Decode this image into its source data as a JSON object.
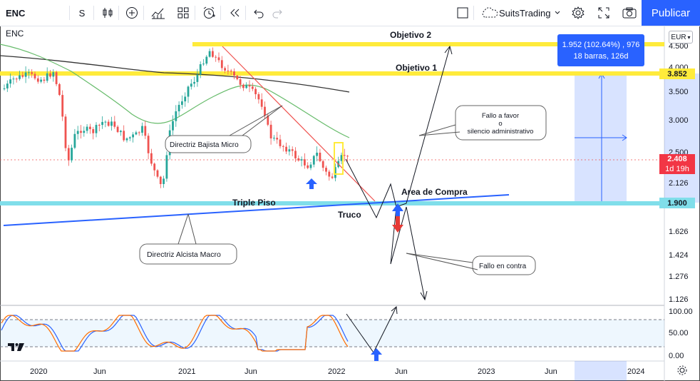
{
  "toolbar": {
    "symbol": "ENC",
    "interval": "S",
    "theme_name": "SuitsTrading",
    "publish_label": "Publicar"
  },
  "chart": {
    "symbol_label": "ENC",
    "currency": "EUR",
    "measure": {
      "line1": "1.952 (102.64%) , 976",
      "line2": "18 barras, 126d"
    },
    "price_axis": [
      "4.500",
      "4.000",
      "3.500",
      "3.000",
      "2.500",
      "2.126",
      "1.626",
      "1.424",
      "1.276",
      "1.126"
    ],
    "price_tags": {
      "objetivo1": "3.852",
      "current": "2.408",
      "countdown": "1d 19h",
      "triple_piso": "1.900"
    },
    "osc_axis": [
      "100.00",
      "50.00",
      "0.00"
    ],
    "time_axis": [
      "2020",
      "Jun",
      "2021",
      "Jun",
      "2022",
      "Jun",
      "2023",
      "Jun",
      "2024"
    ],
    "annotations": {
      "objetivo2": "Objetivo 2",
      "objetivo1": "Objetivo 1",
      "triple_piso": "Triple Piso",
      "area_compra": "Area de Compra",
      "truco": "Truco",
      "directriz_bajista": "Directriz Bajista Micro",
      "directriz_alcista": "Directriz Alcista Macro",
      "fallo_favor_1": "Fallo a favor",
      "fallo_favor_2": "o",
      "fallo_favor_3": "silencio administrativo",
      "fallo_contra": "Fallo en contra"
    },
    "colors": {
      "accent": "#2962ff",
      "up": "#26a69a",
      "down": "#ef5350",
      "objetivo_line": "#ffeb3b",
      "piso_line": "#80deea",
      "tag_yellow": "#ffeb3b",
      "tag_red": "#f23645",
      "tag_cyan": "#80deea"
    }
  }
}
